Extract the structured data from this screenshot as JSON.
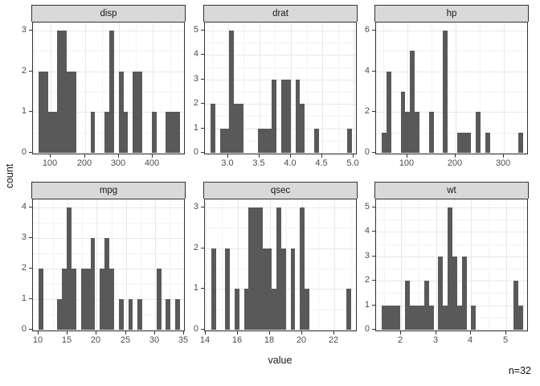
{
  "figure": {
    "y_axis_title": "count",
    "x_axis_title": "value",
    "annotation": "n=32",
    "colors": {
      "bar": "#595959",
      "strip-bg": "#d9d9d9",
      "panel-border": "#333333",
      "grid-major": "#e8e8e8",
      "grid-minor": "#f3f3f3",
      "axis-text": "#4d4d4d",
      "tick": "#333333",
      "title-text": "#1a1a1a"
    }
  },
  "chart_data": {
    "type": "bar",
    "variant": "faceted-histogram",
    "title": "",
    "xlabel": "value",
    "ylabel": "count",
    "sample_size_label": "n=32",
    "n": 32,
    "legend": "none",
    "grid": "on",
    "facets": [
      {
        "label": "disp",
        "row": 0,
        "col": 0,
        "bin_origin": 64.2,
        "bin_width": 13.8241,
        "bars": [
          [
            0,
            2
          ],
          [
            1,
            2
          ],
          [
            2,
            1
          ],
          [
            3,
            1
          ],
          [
            4,
            3
          ],
          [
            5,
            3
          ],
          [
            6,
            2
          ],
          [
            7,
            2
          ],
          [
            11,
            1
          ],
          [
            14,
            1
          ],
          [
            15,
            3
          ],
          [
            17,
            2
          ],
          [
            18,
            1
          ],
          [
            20,
            2
          ],
          [
            21,
            2
          ],
          [
            24,
            1
          ],
          [
            27,
            1
          ],
          [
            28,
            1
          ],
          [
            29,
            1
          ]
        ],
        "xlim": [
          47.6,
          495.5
        ],
        "ylim": [
          -0.06,
          3.2
        ],
        "xticks": [
          100,
          200,
          300,
          400
        ],
        "xtick_labels": [
          "100",
          "200",
          "300",
          "400"
        ],
        "xminor": [
          50,
          150,
          250,
          350,
          450
        ],
        "yticks": [
          0,
          1,
          2,
          3
        ],
        "ytick_labels": [
          "0",
          "1",
          "2",
          "3"
        ],
        "yminor": [
          0.5,
          1.5,
          2.5
        ]
      },
      {
        "label": "drat",
        "row": 0,
        "col": 1,
        "bin_origin": 2.7254,
        "bin_width": 0.0748,
        "bars": [
          [
            0,
            2
          ],
          [
            2,
            1
          ],
          [
            3,
            1
          ],
          [
            4,
            5
          ],
          [
            5,
            2
          ],
          [
            6,
            2
          ],
          [
            10,
            1
          ],
          [
            11,
            1
          ],
          [
            12,
            1
          ],
          [
            13,
            3
          ],
          [
            15,
            3
          ],
          [
            16,
            3
          ],
          [
            18,
            3
          ],
          [
            19,
            2
          ],
          [
            22,
            1
          ],
          [
            29,
            1
          ]
        ],
        "xlim": [
          2.636,
          5.059
        ],
        "ylim": [
          -0.1,
          5.33
        ],
        "xticks": [
          3.0,
          3.5,
          4.0,
          4.5,
          5.0
        ],
        "xtick_labels": [
          "3.0",
          "3.5",
          "4.0",
          "4.5",
          "5.0"
        ],
        "xminor": [
          2.75,
          3.25,
          3.75,
          4.25,
          4.75
        ],
        "yticks": [
          0,
          1,
          2,
          3,
          4,
          5
        ],
        "ytick_labels": [
          "0",
          "1",
          "2",
          "3",
          "4",
          "5"
        ],
        "yminor": [
          0.5,
          1.5,
          2.5,
          3.5,
          4.5
        ]
      },
      {
        "label": "hp",
        "row": 0,
        "col": 2,
        "bin_origin": 47.14,
        "bin_width": 9.7586,
        "bars": [
          [
            0,
            1
          ],
          [
            1,
            4
          ],
          [
            4,
            3
          ],
          [
            5,
            2
          ],
          [
            6,
            5
          ],
          [
            7,
            2
          ],
          [
            10,
            2
          ],
          [
            13,
            6
          ],
          [
            16,
            1
          ],
          [
            17,
            1
          ],
          [
            18,
            1
          ],
          [
            20,
            2
          ],
          [
            22,
            1
          ],
          [
            29,
            1
          ]
        ],
        "xlim": [
          35.4,
          351.6
        ],
        "ylim": [
          -0.12,
          6.4
        ],
        "xticks": [
          100,
          200,
          300
        ],
        "xtick_labels": [
          "100",
          "200",
          "300"
        ],
        "xminor": [
          50,
          150,
          250,
          350
        ],
        "yticks": [
          0,
          2,
          4,
          6
        ],
        "ytick_labels": [
          "0",
          "2",
          "4",
          "6"
        ],
        "yminor": [
          1,
          3,
          5
        ]
      },
      {
        "label": "mpg",
        "row": 1,
        "col": 0,
        "bin_origin": 10.0,
        "bin_width": 0.8103,
        "bars": [
          [
            0,
            2
          ],
          [
            4,
            1
          ],
          [
            5,
            2
          ],
          [
            6,
            4
          ],
          [
            7,
            2
          ],
          [
            9,
            2
          ],
          [
            10,
            2
          ],
          [
            11,
            3
          ],
          [
            13,
            2
          ],
          [
            14,
            3
          ],
          [
            15,
            2
          ],
          [
            17,
            1
          ],
          [
            19,
            1
          ],
          [
            21,
            1
          ],
          [
            25,
            2
          ],
          [
            27,
            1
          ],
          [
            29,
            1
          ]
        ],
        "xlim": [
          9.03,
          35.27
        ],
        "ylim": [
          -0.08,
          4.26
        ],
        "xticks": [
          10,
          15,
          20,
          25,
          30,
          35
        ],
        "xtick_labels": [
          "10",
          "15",
          "20",
          "25",
          "30",
          "35"
        ],
        "xminor": [
          12.5,
          17.5,
          22.5,
          27.5,
          32.5
        ],
        "yticks": [
          0,
          1,
          2,
          3,
          4
        ],
        "ytick_labels": [
          "0",
          "1",
          "2",
          "3",
          "4"
        ],
        "yminor": [
          0.5,
          1.5,
          2.5,
          3.5
        ]
      },
      {
        "label": "qsec",
        "row": 1,
        "col": 1,
        "bin_origin": 14.35,
        "bin_width": 0.2897,
        "bars": [
          [
            0,
            2
          ],
          [
            3,
            2
          ],
          [
            5,
            1
          ],
          [
            7,
            1
          ],
          [
            8,
            3
          ],
          [
            9,
            3
          ],
          [
            10,
            3
          ],
          [
            11,
            2
          ],
          [
            12,
            2
          ],
          [
            13,
            1
          ],
          [
            14,
            3
          ],
          [
            15,
            2
          ],
          [
            17,
            2
          ],
          [
            19,
            3
          ],
          [
            20,
            1
          ],
          [
            29,
            1
          ]
        ],
        "xlim": [
          13.96,
          23.43
        ],
        "ylim": [
          -0.06,
          3.2
        ],
        "xticks": [
          14,
          16,
          18,
          20,
          22
        ],
        "xtick_labels": [
          "14",
          "16",
          "18",
          "20",
          "22"
        ],
        "xminor": [
          15,
          17,
          19,
          21,
          23
        ],
        "yticks": [
          0,
          1,
          2,
          3
        ],
        "ytick_labels": [
          "0",
          "1",
          "2",
          "3"
        ],
        "yminor": [
          0.5,
          1.5,
          2.5
        ]
      },
      {
        "label": "wt",
        "row": 1,
        "col": 2,
        "bin_origin": 1.44,
        "bin_width": 0.1349,
        "bars": [
          [
            0,
            1
          ],
          [
            1,
            1
          ],
          [
            2,
            1
          ],
          [
            3,
            1
          ],
          [
            5,
            2
          ],
          [
            6,
            1
          ],
          [
            7,
            1
          ],
          [
            8,
            1
          ],
          [
            9,
            2
          ],
          [
            10,
            1
          ],
          [
            12,
            3
          ],
          [
            13,
            1
          ],
          [
            14,
            5
          ],
          [
            15,
            3
          ],
          [
            16,
            1
          ],
          [
            17,
            3
          ],
          [
            19,
            1
          ],
          [
            28,
            2
          ],
          [
            29,
            1
          ]
        ],
        "xlim": [
          1.278,
          5.65
        ],
        "ylim": [
          -0.1,
          5.33
        ],
        "xticks": [
          2,
          3,
          4,
          5
        ],
        "xtick_labels": [
          "2",
          "3",
          "4",
          "5"
        ],
        "xminor": [
          1.5,
          2.5,
          3.5,
          4.5,
          5.5
        ],
        "yticks": [
          0,
          1,
          2,
          3,
          4,
          5
        ],
        "ytick_labels": [
          "0",
          "1",
          "2",
          "3",
          "4",
          "5"
        ],
        "yminor": [
          0.5,
          1.5,
          2.5,
          3.5,
          4.5
        ]
      }
    ]
  }
}
